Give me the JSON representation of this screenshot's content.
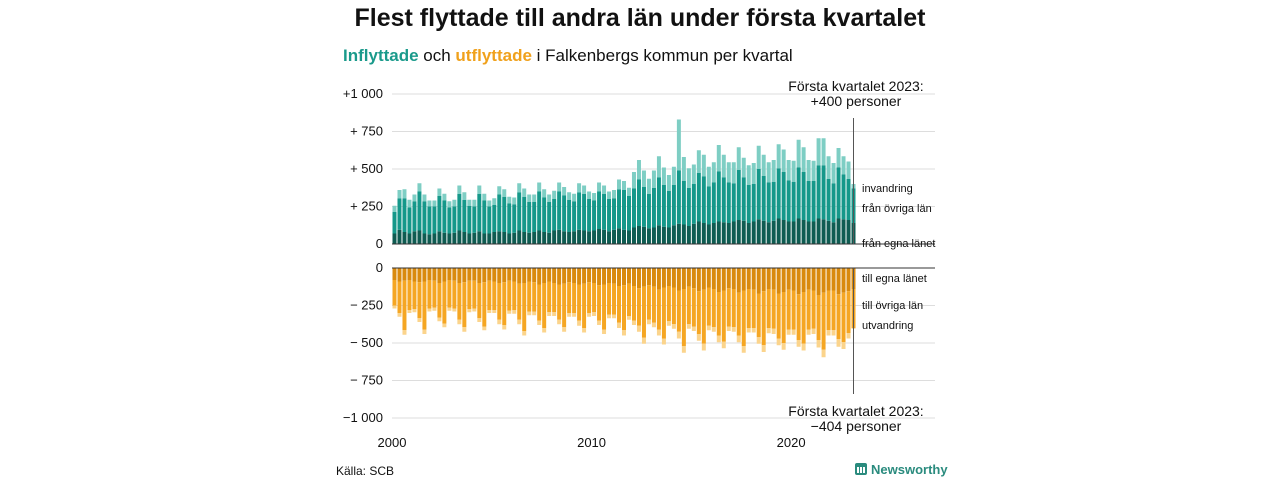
{
  "header": {
    "title": "Flest flyttade till andra län under första kvartalet",
    "subtitle_in": "Inflyttade",
    "subtitle_mid": " och ",
    "subtitle_out": "utflyttade",
    "subtitle_rest": " i Falkenbergs kommun per kvartal"
  },
  "footer": {
    "source": "Källa: SCB",
    "brand": "Newsworthy"
  },
  "colors": {
    "in_egna": "#0f5c52",
    "in_ovriga": "#15988a",
    "in_invandring": "#7ecec4",
    "out_egna": "#d98a0e",
    "out_ovriga": "#f5a623",
    "out_utvandring": "#fbd48c"
  },
  "chart_data": {
    "type": "bar",
    "stacked": true,
    "x_start": "2000 Q1",
    "x_end": "2023 Q1",
    "xticks": [
      "2000",
      "2010",
      "2020"
    ],
    "yticks_top": [
      "+1 000",
      "+ 750",
      "+ 500",
      "+ 250",
      "0"
    ],
    "yticks_bottom": [
      "0",
      "− 250",
      "− 500",
      "− 750",
      "−1 000"
    ],
    "ylim_top": [
      0,
      1000
    ],
    "ylim_bottom": [
      -1000,
      0
    ],
    "series_labels": {
      "invandring": "invandring",
      "fran_ovriga_lan": "från övriga län",
      "fran_egna_lanet": "från egna länet",
      "till_egna_lanet": "till egna länet",
      "till_ovriga_lan": "till övriga län",
      "utvandring": "utvandring"
    },
    "annotation_top": [
      "Första kvartalet 2023:",
      "+400 personer"
    ],
    "annotation_bottom": [
      "Första kvartalet 2023:",
      "−404 personer"
    ],
    "inflyttade": {
      "fran_egna_lanet": [
        70,
        95,
        80,
        70,
        85,
        90,
        70,
        65,
        70,
        85,
        75,
        70,
        75,
        90,
        80,
        70,
        75,
        85,
        70,
        70,
        80,
        85,
        80,
        70,
        75,
        90,
        80,
        75,
        80,
        90,
        80,
        75,
        90,
        95,
        85,
        80,
        85,
        95,
        90,
        85,
        90,
        100,
        95,
        85,
        95,
        105,
        95,
        90,
        110,
        120,
        115,
        105,
        110,
        125,
        115,
        110,
        125,
        135,
        130,
        120,
        135,
        150,
        140,
        130,
        140,
        150,
        145,
        140,
        150,
        160,
        155,
        140,
        150,
        165,
        155,
        145,
        155,
        170,
        160,
        150,
        150,
        170,
        160,
        150,
        150,
        170,
        165,
        155,
        145,
        170,
        165,
        160,
        140
      ],
      "fran_ovriga_lan": [
        145,
        210,
        225,
        175,
        200,
        260,
        215,
        185,
        180,
        235,
        215,
        175,
        175,
        245,
        215,
        185,
        175,
        250,
        220,
        180,
        180,
        245,
        235,
        200,
        190,
        255,
        235,
        205,
        200,
        260,
        230,
        205,
        210,
        255,
        240,
        215,
        200,
        250,
        245,
        215,
        200,
        250,
        240,
        215,
        210,
        260,
        265,
        230,
        260,
        310,
        265,
        230,
        265,
        320,
        280,
        245,
        270,
        355,
        290,
        255,
        265,
        325,
        310,
        255,
        270,
        335,
        300,
        270,
        255,
        335,
        290,
        255,
        250,
        335,
        300,
        265,
        260,
        335,
        320,
        275,
        265,
        340,
        320,
        270,
        270,
        355,
        360,
        280,
        260,
        340,
        300,
        275,
        230
      ],
      "invandring": [
        40,
        55,
        60,
        50,
        45,
        55,
        45,
        40,
        40,
        50,
        45,
        40,
        45,
        55,
        50,
        40,
        45,
        55,
        45,
        40,
        45,
        55,
        50,
        45,
        45,
        60,
        55,
        50,
        50,
        60,
        55,
        50,
        55,
        60,
        55,
        50,
        50,
        60,
        55,
        50,
        50,
        60,
        55,
        50,
        55,
        65,
        60,
        55,
        110,
        130,
        110,
        100,
        115,
        140,
        115,
        105,
        120,
        340,
        160,
        130,
        130,
        150,
        145,
        130,
        135,
        175,
        150,
        135,
        140,
        150,
        130,
        130,
        140,
        155,
        140,
        135,
        145,
        160,
        150,
        135,
        140,
        185,
        165,
        140,
        135,
        180,
        180,
        150,
        135,
        130,
        120,
        115,
        30
      ]
    },
    "utflyttade": {
      "till_egna_lanet": [
        80,
        90,
        85,
        80,
        90,
        95,
        90,
        80,
        85,
        100,
        90,
        80,
        85,
        100,
        95,
        85,
        85,
        100,
        95,
        85,
        90,
        100,
        95,
        85,
        90,
        105,
        100,
        90,
        95,
        110,
        100,
        90,
        100,
        110,
        105,
        95,
        100,
        110,
        105,
        95,
        100,
        115,
        110,
        100,
        105,
        120,
        115,
        105,
        120,
        135,
        125,
        115,
        125,
        145,
        130,
        120,
        130,
        150,
        140,
        125,
        135,
        155,
        145,
        130,
        140,
        160,
        150,
        135,
        140,
        165,
        150,
        140,
        145,
        170,
        155,
        140,
        145,
        170,
        160,
        145,
        150,
        175,
        160,
        145,
        150,
        180,
        165,
        150,
        150,
        175,
        165,
        155,
        140
      ],
      "till_ovriga_lan": [
        170,
        210,
        330,
        200,
        185,
        240,
        320,
        190,
        180,
        230,
        280,
        185,
        185,
        245,
        300,
        190,
        185,
        235,
        295,
        195,
        190,
        245,
        285,
        200,
        190,
        240,
        320,
        200,
        195,
        240,
        300,
        205,
        195,
        235,
        290,
        205,
        200,
        240,
        295,
        205,
        195,
        235,
        300,
        210,
        205,
        245,
        300,
        215,
        230,
        250,
        340,
        230,
        240,
        265,
        340,
        235,
        245,
        275,
        380,
        250,
        255,
        285,
        360,
        255,
        255,
        290,
        340,
        255,
        255,
        285,
        370,
        260,
        255,
        290,
        360,
        260,
        260,
        300,
        340,
        265,
        260,
        305,
        345,
        265,
        255,
        300,
        380,
        265,
        265,
        300,
        330,
        280,
        260
      ],
      "utvandring": [
        20,
        25,
        30,
        20,
        20,
        25,
        30,
        20,
        20,
        25,
        25,
        20,
        20,
        30,
        30,
        20,
        20,
        25,
        25,
        20,
        20,
        30,
        30,
        20,
        25,
        30,
        30,
        25,
        25,
        30,
        30,
        25,
        25,
        30,
        30,
        25,
        25,
        35,
        30,
        25,
        25,
        30,
        30,
        25,
        25,
        35,
        35,
        25,
        30,
        40,
        40,
        30,
        30,
        40,
        40,
        30,
        30,
        45,
        45,
        30,
        30,
        45,
        45,
        30,
        30,
        45,
        45,
        30,
        30,
        45,
        45,
        30,
        30,
        45,
        45,
        35,
        35,
        45,
        45,
        35,
        35,
        45,
        45,
        35,
        35,
        50,
        50,
        35,
        35,
        50,
        45,
        35,
        5
      ]
    }
  }
}
